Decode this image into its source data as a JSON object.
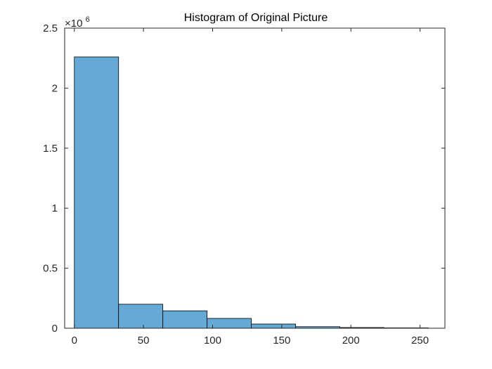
{
  "chart_data": {
    "type": "bar",
    "title": "Histogram of Original Picture",
    "xlabel": "",
    "ylabel": "",
    "bin_edges": [
      0,
      32,
      64,
      96,
      128,
      160,
      192,
      224,
      256
    ],
    "values": [
      2260000,
      200000,
      145000,
      82000,
      35000,
      13000,
      6000,
      3000
    ],
    "xlim": [
      -7,
      268
    ],
    "ylim": [
      0,
      2500000
    ],
    "x_ticks": [
      0,
      50,
      100,
      150,
      200,
      250
    ],
    "x_tick_labels": [
      "0",
      "50",
      "100",
      "150",
      "200",
      "250"
    ],
    "y_ticks": [
      0,
      500000,
      1000000,
      1500000,
      2000000,
      2500000
    ],
    "y_tick_labels": [
      "0",
      "0.5",
      "1",
      "1.5",
      "2",
      "2.5"
    ],
    "y_exponent_label": "×10",
    "y_exponent_power": "6",
    "grid": false,
    "legend": "none",
    "bar_color": "#65A9D7",
    "bar_edge_color": "#000000",
    "axis_color": "#262626"
  }
}
